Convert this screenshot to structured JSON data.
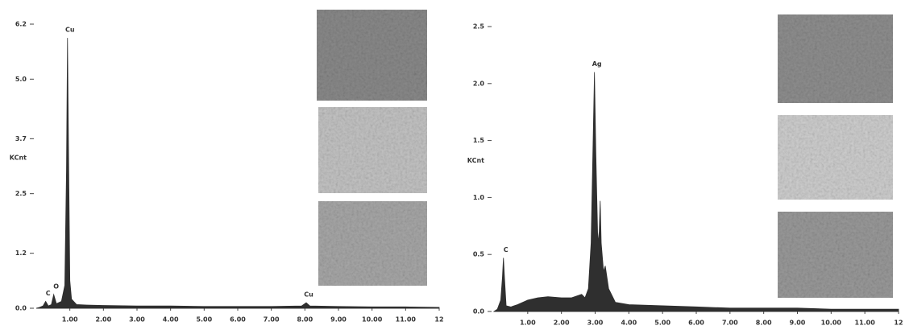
{
  "chart_data": [
    {
      "type": "area",
      "ylabel": "KCnt",
      "color": "#2f2f2f",
      "xlim": [
        0,
        12
      ],
      "ylim": [
        0,
        6.2
      ],
      "xticks": [
        {
          "value": 1,
          "label": "1.00"
        },
        {
          "value": 2,
          "label": "2.00"
        },
        {
          "value": 3,
          "label": "3.00"
        },
        {
          "value": 4,
          "label": "4.00"
        },
        {
          "value": 5,
          "label": "5.00"
        },
        {
          "value": 6,
          "label": "6.00"
        },
        {
          "value": 7,
          "label": "7.00"
        },
        {
          "value": 8,
          "label": "8.00"
        },
        {
          "value": 9,
          "label": "9.00"
        },
        {
          "value": 10,
          "label": "10.00"
        },
        {
          "value": 11,
          "label": "11.00"
        },
        12
      ],
      "yticks": [
        {
          "value": 0,
          "label": "0.0"
        },
        1.2,
        2.5,
        3.7,
        {
          "value": 5,
          "label": "5.0"
        },
        6.2
      ],
      "x": [
        0,
        0.1,
        0.2,
        0.28,
        0.36,
        0.45,
        0.52,
        0.6,
        0.75,
        0.85,
        0.9,
        0.93,
        0.96,
        1.0,
        1.05,
        1.2,
        1.5,
        2,
        3,
        4,
        5,
        6,
        7,
        7.9,
        8.04,
        8.15,
        9,
        10,
        11,
        12
      ],
      "values": [
        0,
        0.02,
        0.05,
        0.15,
        0.05,
        0.08,
        0.3,
        0.1,
        0.15,
        0.5,
        3.0,
        5.9,
        3.5,
        0.6,
        0.2,
        0.08,
        0.07,
        0.06,
        0.05,
        0.05,
        0.04,
        0.04,
        0.04,
        0.05,
        0.12,
        0.05,
        0.04,
        0.03,
        0.03,
        0.02
      ],
      "peaks": [
        {
          "label": "C",
          "x": 0.28,
          "y": 0.15
        },
        {
          "label": "O",
          "x": 0.52,
          "y": 0.3
        },
        {
          "label": "Cu",
          "x": 0.93,
          "y": 5.9
        },
        {
          "label": "Cu",
          "x": 8.04,
          "y": 0.12
        }
      ]
    },
    {
      "type": "area",
      "ylabel": "KCnt",
      "color": "#2f2f2f",
      "xlim": [
        0,
        12
      ],
      "ylim": [
        0,
        2.5
      ],
      "xticks": [
        {
          "value": 1,
          "label": "1.00"
        },
        {
          "value": 2,
          "label": "2.00"
        },
        {
          "value": 3,
          "label": "3.00"
        },
        {
          "value": 4,
          "label": "4.00"
        },
        {
          "value": 5,
          "label": "5.00"
        },
        {
          "value": 6,
          "label": "6.00"
        },
        {
          "value": 7,
          "label": "7.00"
        },
        {
          "value": 8,
          "label": "8.00"
        },
        {
          "value": 9,
          "label": "9.00"
        },
        {
          "value": 10,
          "label": "10.00"
        },
        {
          "value": 11,
          "label": "11.00"
        },
        12
      ],
      "yticks": [
        {
          "value": 0,
          "label": "0.0"
        },
        0.5,
        {
          "value": 1,
          "label": "1.0"
        },
        1.5,
        {
          "value": 2,
          "label": "2.0"
        },
        2.5
      ],
      "x": [
        0,
        0.1,
        0.2,
        0.25,
        0.28,
        0.31,
        0.36,
        0.5,
        0.7,
        1.0,
        1.3,
        1.6,
        2.0,
        2.3,
        2.6,
        2.7,
        2.8,
        2.88,
        2.94,
        2.98,
        3.02,
        3.08,
        3.12,
        3.15,
        3.18,
        3.25,
        3.3,
        3.4,
        3.6,
        4,
        5,
        6,
        7,
        8,
        9,
        10,
        11,
        12
      ],
      "values": [
        0,
        0.02,
        0.1,
        0.3,
        0.47,
        0.3,
        0.05,
        0.04,
        0.06,
        0.1,
        0.12,
        0.13,
        0.12,
        0.12,
        0.15,
        0.12,
        0.2,
        0.6,
        1.5,
        2.1,
        1.4,
        0.6,
        0.7,
        0.97,
        0.6,
        0.35,
        0.4,
        0.2,
        0.08,
        0.06,
        0.05,
        0.04,
        0.03,
        0.03,
        0.03,
        0.02,
        0.02,
        0.02
      ],
      "peaks": [
        {
          "label": "C",
          "x": 0.28,
          "y": 0.47
        },
        {
          "label": "Ag",
          "x": 2.98,
          "y": 2.1
        }
      ]
    }
  ]
}
